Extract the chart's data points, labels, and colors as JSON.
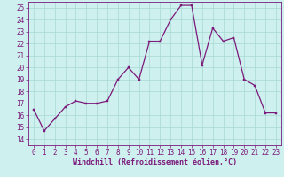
{
  "x": [
    0,
    1,
    2,
    3,
    4,
    5,
    6,
    7,
    8,
    9,
    10,
    11,
    12,
    13,
    14,
    15,
    16,
    17,
    18,
    19,
    20,
    21,
    22,
    23
  ],
  "y": [
    16.5,
    14.7,
    15.7,
    16.7,
    17.2,
    17.0,
    17.0,
    17.2,
    19.0,
    20.0,
    19.0,
    22.2,
    22.2,
    24.0,
    25.2,
    25.2,
    20.2,
    23.3,
    22.2,
    22.5,
    19.0,
    18.5,
    16.2,
    16.2
  ],
  "line_color": "#7b1a7b",
  "marker_color": "#7b1a7b",
  "bg_color": "#cef0ee",
  "grid_color": "#a8d8d4",
  "xlabel": "Windchill (Refroidissement éolien,°C)",
  "xlim": [
    -0.5,
    23.5
  ],
  "ylim": [
    13.5,
    25.5
  ],
  "yticks": [
    14,
    15,
    16,
    17,
    18,
    19,
    20,
    21,
    22,
    23,
    24,
    25
  ],
  "xticks": [
    0,
    1,
    2,
    3,
    4,
    5,
    6,
    7,
    8,
    9,
    10,
    11,
    12,
    13,
    14,
    15,
    16,
    17,
    18,
    19,
    20,
    21,
    22,
    23
  ],
  "axis_fontsize": 6.0,
  "tick_fontsize": 5.5,
  "line_width": 0.9,
  "marker_size": 2.0
}
